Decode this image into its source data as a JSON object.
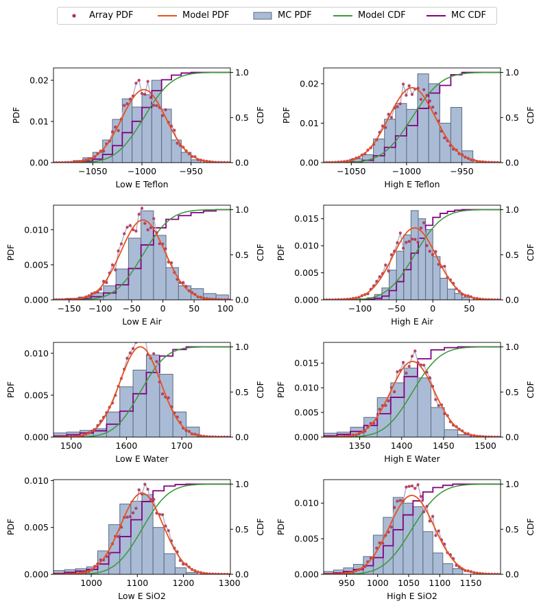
{
  "legend": {
    "placement": "top-center",
    "entries": [
      {
        "label": "Array PDF",
        "color": "#b03050",
        "kind": "marker"
      },
      {
        "label": "Model PDF",
        "color": "#e8501a",
        "kind": "line"
      },
      {
        "label": "MC PDF",
        "color": "#aabbd5",
        "kind": "patch"
      },
      {
        "label": "Model CDF",
        "color": "#3a9a3a",
        "kind": "line"
      },
      {
        "label": "MC CDF",
        "color": "#800080",
        "kind": "line"
      }
    ]
  },
  "colors": {
    "array_pdf": "#b03050",
    "array_pdf_line": "#b0b0d0",
    "model_pdf": "#e8501a",
    "mc_pdf_fill": "#aabbd5",
    "mc_pdf_edge": "#5a6a80",
    "model_cdf": "#3a9a3a",
    "mc_cdf": "#800080"
  },
  "chart_data": [
    {
      "type": "histogram+line",
      "xlabel": "Low E Teflon",
      "ylabel": "PDF",
      "y2label": "CDF",
      "xlim": [
        -1090,
        -910
      ],
      "ylim": [
        0,
        0.023
      ],
      "y2lim": [
        0,
        1.05
      ],
      "xticks": [
        -1050,
        -1000,
        -950
      ],
      "yticks": [
        0.0,
        0.01,
        0.02
      ],
      "yticklabels": [
        "0.00",
        "0.01",
        "0.02"
      ],
      "y2ticks": [
        0,
        0.5,
        1.0
      ],
      "y2ticklabels": [
        "0.0",
        "0.5",
        "1.0"
      ],
      "model": {
        "mu": -998,
        "sigma": 22.5
      },
      "mc_bins": [
        -1070,
        -1060,
        -1050,
        -1040,
        -1030,
        -1020,
        -1010,
        -1000,
        -990,
        -980,
        -970,
        -960,
        -950,
        -940
      ],
      "mc_values": [
        0.0005,
        0.0012,
        0.0025,
        0.0055,
        0.0105,
        0.0155,
        0.0135,
        0.0165,
        0.02,
        0.013,
        0.0055,
        0.0025,
        0.0007
      ],
      "array_scatter_sigma_ratio": 0.12
    },
    {
      "type": "histogram+line",
      "xlabel": "High E Teflon",
      "ylabel": "PDF",
      "y2label": "CDF",
      "xlim": [
        -1075,
        -915
      ],
      "ylim": [
        0,
        0.024
      ],
      "y2lim": [
        0,
        1.05
      ],
      "xticks": [
        -1050,
        -1000,
        -950
      ],
      "yticks": [
        0.0,
        0.01,
        0.02
      ],
      "yticklabels": [
        "0.00",
        "0.01",
        "0.02"
      ],
      "y2ticks": [
        0,
        0.5,
        1.0
      ],
      "y2ticklabels": [
        "0.0",
        "0.5",
        "1.0"
      ],
      "model": {
        "mu": -995,
        "sigma": 21
      },
      "mc_bins": [
        -1050,
        -1040,
        -1030,
        -1020,
        -1010,
        -1000,
        -990,
        -980,
        -970,
        -960,
        -950,
        -940
      ],
      "mc_values": [
        0.001,
        0.002,
        0.006,
        0.011,
        0.015,
        0.0135,
        0.0225,
        0.02,
        0.01,
        0.014,
        0.003
      ],
      "array_scatter_sigma_ratio": 0.08
    },
    {
      "type": "histogram+line",
      "xlabel": "Low E Air",
      "ylabel": "PDF",
      "y2label": "CDF",
      "xlim": [
        -175,
        108
      ],
      "ylim": [
        0,
        0.0135
      ],
      "y2lim": [
        0,
        1.05
      ],
      "xticks": [
        -150,
        -100,
        -50,
        0,
        50,
        100
      ],
      "yticks": [
        0.0,
        0.005,
        0.01
      ],
      "yticklabels": [
        "0.000",
        "0.005",
        "0.010"
      ],
      "y2ticks": [
        0,
        0.5,
        1.0
      ],
      "y2ticklabels": [
        "0.0",
        "0.5",
        "1.0"
      ],
      "model": {
        "mu": -32,
        "sigma": 35
      },
      "mc_bins": [
        -175,
        -155,
        -135,
        -115,
        -95,
        -75,
        -55,
        -35,
        -15,
        5,
        25,
        45,
        65,
        85,
        105
      ],
      "mc_values": [
        0.0001,
        0.0002,
        0.0004,
        0.001,
        0.002,
        0.0044,
        0.0088,
        0.0127,
        0.0092,
        0.0046,
        0.002,
        0.0016,
        0.0009,
        0.0007
      ],
      "array_scatter_sigma_ratio": 0.12
    },
    {
      "type": "histogram+line",
      "xlabel": "High E Air",
      "ylabel": "PDF",
      "y2label": "CDF",
      "xlim": [
        -150,
        93
      ],
      "ylim": [
        0,
        0.0175
      ],
      "y2lim": [
        0,
        1.05
      ],
      "xticks": [
        -100,
        -50,
        0,
        50
      ],
      "yticks": [
        0.0,
        0.005,
        0.01,
        0.015
      ],
      "yticklabels": [
        "0.000",
        "0.005",
        "0.010",
        "0.015"
      ],
      "y2ticks": [
        0,
        0.5,
        1.0
      ],
      "y2ticklabels": [
        "0.0",
        "0.5",
        "1.0"
      ],
      "model": {
        "mu": -25,
        "sigma": 30
      },
      "mc_bins": [
        -100,
        -90,
        -80,
        -70,
        -60,
        -50,
        -40,
        -30,
        -20,
        -10,
        0,
        10,
        20,
        30,
        40,
        50
      ],
      "mc_values": [
        0.0002,
        0.0004,
        0.001,
        0.0022,
        0.0055,
        0.009,
        0.012,
        0.0165,
        0.015,
        0.013,
        0.008,
        0.004,
        0.002,
        0.0012,
        0.0005
      ],
      "array_scatter_sigma_ratio": 0.12
    },
    {
      "type": "histogram+line",
      "xlabel": "Low E Water",
      "ylabel": "PDF",
      "y2label": "CDF",
      "xlim": [
        1468,
        1788
      ],
      "ylim": [
        0,
        0.0113
      ],
      "y2lim": [
        0,
        1.05
      ],
      "xticks": [
        1500,
        1600,
        1700
      ],
      "yticks": [
        0.0,
        0.005,
        0.01
      ],
      "yticklabels": [
        "0.000",
        "0.005",
        "0.010"
      ],
      "y2ticks": [
        0,
        0.5,
        1.0
      ],
      "y2ticklabels": [
        "0.0",
        "0.5",
        "1.0"
      ],
      "model": {
        "mu": 1625,
        "sigma": 37
      },
      "mc_bins": [
        1468,
        1492,
        1516,
        1540,
        1564,
        1588,
        1612,
        1636,
        1660,
        1684,
        1708,
        1732
      ],
      "mc_values": [
        0.0005,
        0.0006,
        0.0008,
        0.001,
        0.003,
        0.006,
        0.008,
        0.0098,
        0.0075,
        0.003,
        0.0012
      ],
      "array_scatter_sigma_ratio": 0.1
    },
    {
      "type": "histogram+line",
      "xlabel": "High E Water",
      "ylabel": "PDF",
      "y2label": "CDF",
      "xlim": [
        1307,
        1518
      ],
      "ylim": [
        0,
        0.0192
      ],
      "y2lim": [
        0,
        1.05
      ],
      "xticks": [
        1350,
        1400,
        1450,
        1500
      ],
      "yticks": [
        0.0,
        0.005,
        0.01,
        0.015
      ],
      "yticklabels": [
        "0.000",
        "0.005",
        "0.010",
        "0.015"
      ],
      "y2ticks": [
        0,
        0.5,
        1.0
      ],
      "y2ticklabels": [
        "0.0",
        "0.5",
        "1.0"
      ],
      "model": {
        "mu": 1413,
        "sigma": 26
      },
      "mc_bins": [
        1307,
        1323,
        1339,
        1355,
        1371,
        1387,
        1403,
        1419,
        1435,
        1451,
        1467,
        1483
      ],
      "mc_values": [
        0.0008,
        0.001,
        0.002,
        0.004,
        0.008,
        0.011,
        0.014,
        0.012,
        0.006,
        0.0015,
        0.0005
      ],
      "array_scatter_sigma_ratio": 0.1
    },
    {
      "type": "histogram+line",
      "xlabel": "Low E SiO2",
      "ylabel": "PDF",
      "y2label": "CDF",
      "xlim": [
        918,
        1302
      ],
      "ylim": [
        0,
        0.0101
      ],
      "y2lim": [
        0,
        1.05
      ],
      "xticks": [
        1000,
        1100,
        1200,
        1300
      ],
      "yticks": [
        0.0,
        0.005,
        0.01
      ],
      "yticklabels": [
        "0.000",
        "0.005",
        "0.010"
      ],
      "y2ticks": [
        0,
        0.5,
        1.0
      ],
      "y2ticklabels": [
        "0.0",
        "0.5",
        "1.0"
      ],
      "model": {
        "mu": 1110,
        "sigma": 46
      },
      "mc_bins": [
        918,
        942,
        966,
        990,
        1014,
        1038,
        1062,
        1086,
        1110,
        1134,
        1158,
        1182,
        1206,
        1230
      ],
      "mc_values": [
        0.0004,
        0.0005,
        0.0006,
        0.0008,
        0.0025,
        0.0053,
        0.0075,
        0.0078,
        0.0085,
        0.005,
        0.0022,
        0.0007,
        0.0002
      ],
      "array_scatter_sigma_ratio": 0.12
    },
    {
      "type": "histogram+line",
      "xlabel": "High E SiO2",
      "ylabel": "PDF",
      "y2label": "CDF",
      "xlim": [
        913,
        1198
      ],
      "ylim": [
        0,
        0.0133
      ],
      "y2lim": [
        0,
        1.05
      ],
      "xticks": [
        950,
        1000,
        1050,
        1100,
        1150
      ],
      "yticks": [
        0.0,
        0.005,
        0.01
      ],
      "yticklabels": [
        "0.000",
        "0.005",
        "0.010"
      ],
      "y2ticks": [
        0,
        0.5,
        1.0
      ],
      "y2ticklabels": [
        "0.0",
        "0.5",
        "1.0"
      ],
      "model": {
        "mu": 1055,
        "sigma": 36
      },
      "mc_bins": [
        913,
        929,
        945,
        961,
        977,
        993,
        1009,
        1025,
        1041,
        1057,
        1073,
        1089,
        1105,
        1121,
        1137
      ],
      "mc_values": [
        0.0004,
        0.0006,
        0.0009,
        0.0014,
        0.0025,
        0.0055,
        0.008,
        0.0108,
        0.01,
        0.0095,
        0.006,
        0.003,
        0.0015,
        0.0008
      ],
      "array_scatter_sigma_ratio": 0.12
    }
  ]
}
